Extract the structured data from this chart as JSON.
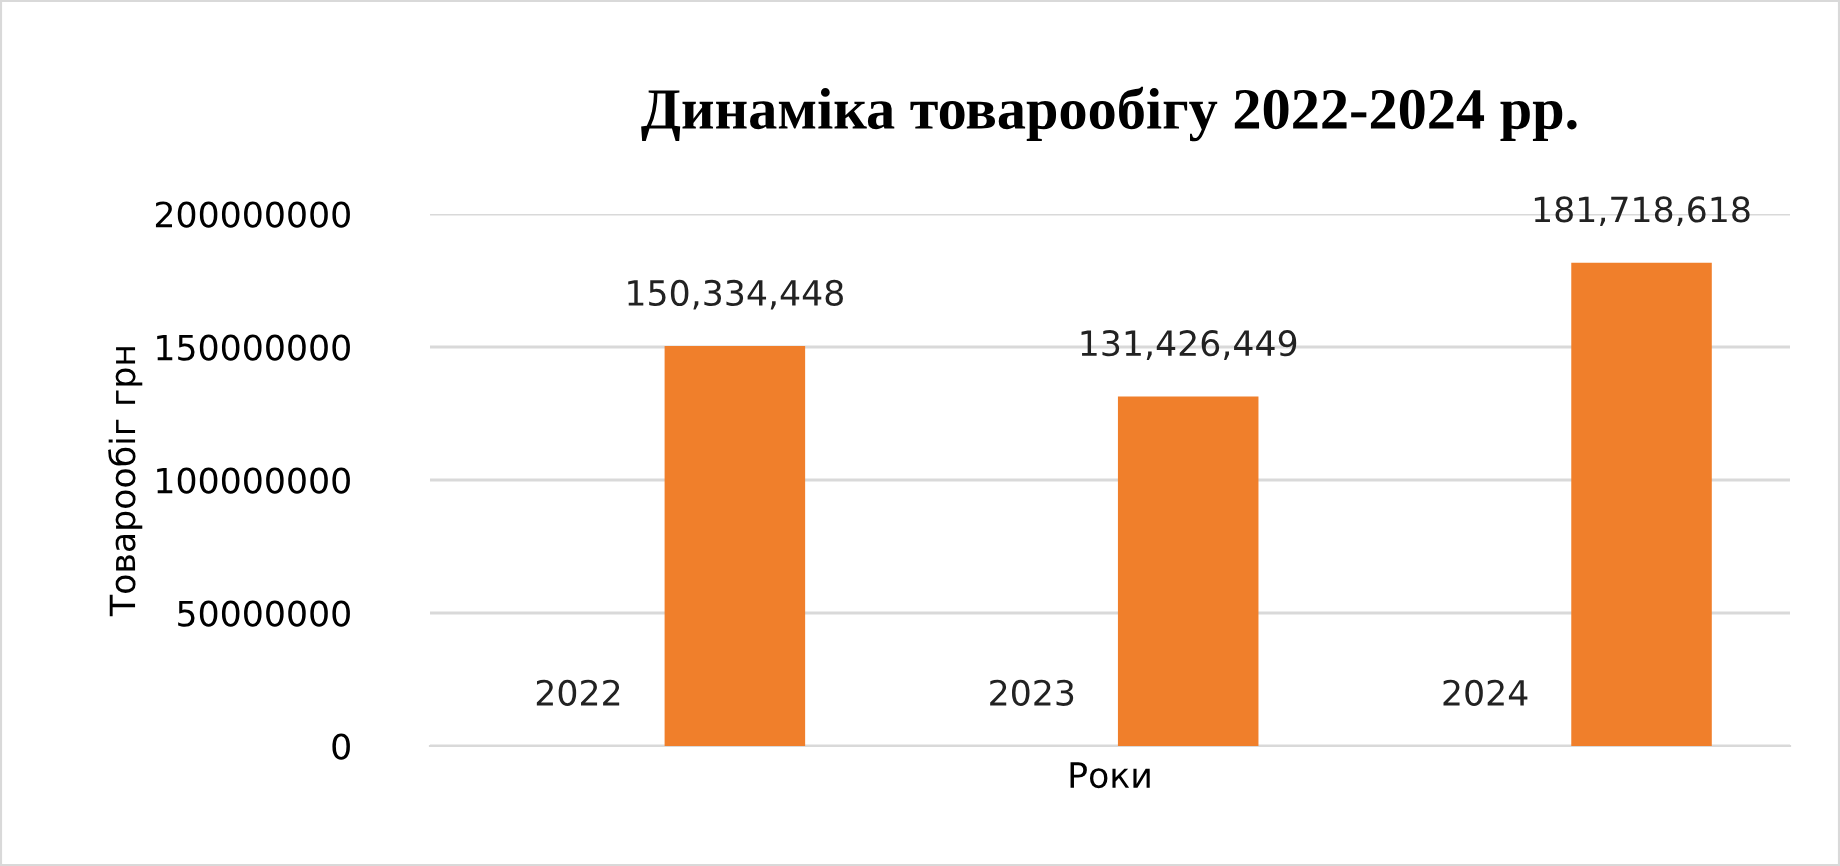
{
  "chart_data": {
    "type": "bar",
    "title": "Динаміка товарообігу 2022-2024 рр.",
    "xlabel": "Роки",
    "ylabel": "Товарообіг грн",
    "categories": [
      null,
      null,
      null
    ],
    "series": [
      {
        "color": "#4472c4",
        "values": [
          2022,
          2023,
          2024
        ],
        "value_labels": [
          "2022",
          "2023",
          "2024"
        ]
      },
      {
        "color": "#f07f2b",
        "values": [
          150334448,
          131426449,
          181718618
        ],
        "value_labels": [
          "150,334,448",
          "131,426,449",
          "181,718,618"
        ]
      }
    ],
    "ylim": [
      0,
      200000000
    ],
    "yticks": [
      0,
      50000000,
      100000000,
      150000000,
      200000000
    ],
    "grid": "y"
  }
}
